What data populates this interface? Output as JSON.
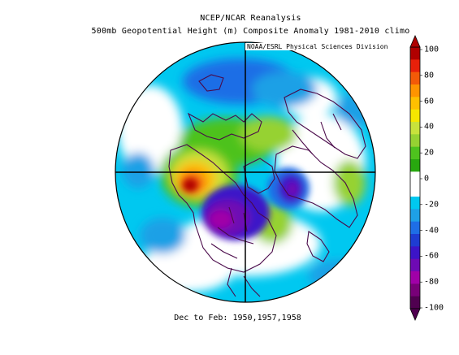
{
  "title": {
    "line1": "NCEP/NCAR Reanalysis",
    "line2": "500mb Geopotential Height (m) Composite Anomaly 1981-2010 climo"
  },
  "credit": "NOAA/ESRL Physical Sciences Division",
  "footer": "Dec to Feb: 1950,1957,1958",
  "map": {
    "projection": "north-polar-stereographic",
    "variable": "500mb geopotential height anomaly",
    "units": "m",
    "anomaly_features": [
      {
        "region": "Gulf of Alaska / NE Pacific",
        "sign": "positive",
        "approx_value": 90
      },
      {
        "region": "Central Canada / Hudson Bay",
        "sign": "negative",
        "approx_value": -80
      },
      {
        "region": "Western Europe / NE Atlantic",
        "sign": "negative",
        "approx_value": -55
      },
      {
        "region": "Arctic / Greenland",
        "sign": "positive",
        "approx_value": 20
      },
      {
        "region": "Eastern United States",
        "sign": "positive",
        "approx_value": 25
      },
      {
        "region": "North Pacific south of Aleutians",
        "sign": "negative",
        "approx_value": -30
      },
      {
        "region": "Siberia / Central Asia",
        "sign": "negative",
        "approx_value": -25
      }
    ]
  },
  "colorbar": {
    "ticks": [
      "100",
      "80",
      "60",
      "40",
      "20",
      "0",
      "-20",
      "-40",
      "-60",
      "-80",
      "-100"
    ],
    "colors": [
      "#b00000",
      "#e8200a",
      "#f35a08",
      "#ff9400",
      "#ffc000",
      "#f5e700",
      "#c8e23c",
      "#96d232",
      "#4ec21e",
      "#28a80f",
      "#ffffff",
      "#ffffff",
      "#00c8f0",
      "#1ea0e6",
      "#1e6ee6",
      "#1e3cd2",
      "#3c14c8",
      "#6e0ab4",
      "#a000a8",
      "#780078",
      "#500050"
    ]
  }
}
